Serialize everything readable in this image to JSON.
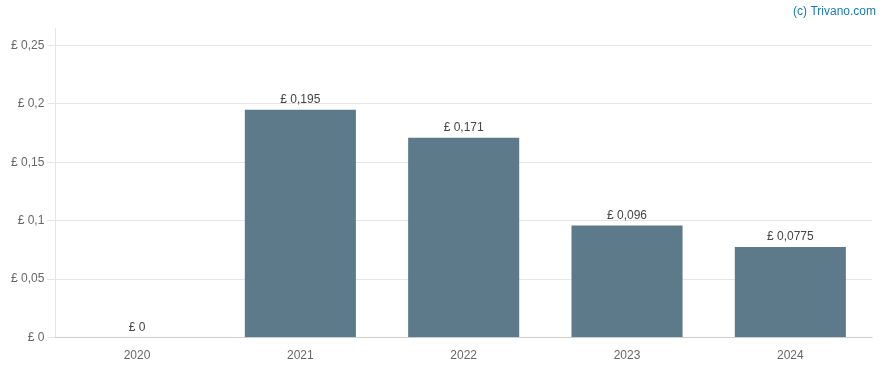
{
  "chart_data": {
    "type": "bar",
    "categories": [
      "2020",
      "2021",
      "2022",
      "2023",
      "2024"
    ],
    "values": [
      0,
      0.195,
      0.171,
      0.096,
      0.0775
    ],
    "value_labels": [
      "£ 0",
      "£ 0,195",
      "£ 0,171",
      "£ 0,096",
      "£ 0,0775"
    ],
    "data_labels": true,
    "color": "#5d7a8a",
    "ylim": [
      0,
      0.265
    ],
    "yticks": [
      {
        "value": 0,
        "label": "£ 0"
      },
      {
        "value": 0.05,
        "label": "£ 0,05"
      },
      {
        "value": 0.1,
        "label": "£ 0,1"
      },
      {
        "value": 0.15,
        "label": "£ 0,15"
      },
      {
        "value": 0.2,
        "label": "£ 0,2"
      },
      {
        "value": 0.25,
        "label": "£ 0,25"
      }
    ],
    "grid": true,
    "annotations": [
      {
        "text": "(c) Trivano.com",
        "color": "#1a7ab5"
      }
    ]
  }
}
